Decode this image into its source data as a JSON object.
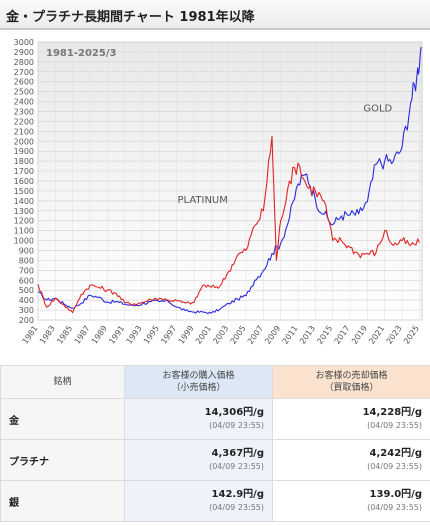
{
  "page": {
    "title": "金・プラチナ長期間チャート 1981年以降"
  },
  "chart_data": {
    "type": "line",
    "title": "金・プラチナ長期間チャート 1981年以降",
    "annotation_period": "1981-2025/3",
    "ylim": [
      200,
      3000
    ],
    "y_ticks": [
      200,
      300,
      400,
      500,
      600,
      700,
      800,
      900,
      1000,
      1100,
      1200,
      1300,
      1400,
      1500,
      1600,
      1700,
      1800,
      1900,
      2000,
      2100,
      2200,
      2300,
      2400,
      2500,
      2600,
      2700,
      2800,
      2900,
      3000
    ],
    "x_ticks": [
      "1981",
      "1983",
      "1985",
      "1987",
      "1989",
      "1991",
      "1993",
      "1995",
      "1997",
      "1999",
      "2001",
      "2003",
      "2005",
      "2007",
      "2009",
      "2011",
      "2013",
      "2015",
      "2017",
      "2019",
      "2021",
      "2023",
      "2025"
    ],
    "grid": true,
    "colors": {
      "gold": "#2b2bdd",
      "platinum": "#e02424"
    },
    "series": [
      {
        "name": "GOLD",
        "points": [
          [
            1981,
            480
          ],
          [
            1982,
            400
          ],
          [
            1983,
            420
          ],
          [
            1984,
            360
          ],
          [
            1985,
            320
          ],
          [
            1986,
            370
          ],
          [
            1987,
            450
          ],
          [
            1988,
            430
          ],
          [
            1989,
            380
          ],
          [
            1990,
            385
          ],
          [
            1991,
            360
          ],
          [
            1992,
            345
          ],
          [
            1993,
            360
          ],
          [
            1994,
            385
          ],
          [
            1995,
            385
          ],
          [
            1996,
            390
          ],
          [
            1997,
            330
          ],
          [
            1998,
            295
          ],
          [
            1999,
            280
          ],
          [
            2000,
            280
          ],
          [
            2001,
            270
          ],
          [
            2002,
            310
          ],
          [
            2003,
            365
          ],
          [
            2004,
            410
          ],
          [
            2005,
            445
          ],
          [
            2006,
            600
          ],
          [
            2007,
            700
          ],
          [
            2008,
            870
          ],
          [
            2009,
            975
          ],
          [
            2010,
            1225
          ],
          [
            2011,
            1570
          ],
          [
            2012,
            1670
          ],
          [
            2013,
            1410
          ],
          [
            2014,
            1265
          ],
          [
            2015,
            1160
          ],
          [
            2016,
            1250
          ],
          [
            2017,
            1260
          ],
          [
            2018,
            1270
          ],
          [
            2019,
            1390
          ],
          [
            2020,
            1770
          ],
          [
            2021,
            1800
          ],
          [
            2022,
            1800
          ],
          [
            2023,
            1940
          ],
          [
            2024,
            2390
          ],
          [
            2024.7,
            2650
          ],
          [
            2025.2,
            2950
          ]
        ]
      },
      {
        "name": "PLATINUM",
        "points": [
          [
            1981,
            560
          ],
          [
            1982,
            330
          ],
          [
            1983,
            420
          ],
          [
            1984,
            350
          ],
          [
            1985,
            275
          ],
          [
            1986,
            460
          ],
          [
            1987,
            550
          ],
          [
            1988,
            530
          ],
          [
            1989,
            500
          ],
          [
            1990,
            470
          ],
          [
            1991,
            375
          ],
          [
            1992,
            360
          ],
          [
            1993,
            375
          ],
          [
            1994,
            405
          ],
          [
            1995,
            420
          ],
          [
            1996,
            400
          ],
          [
            1997,
            395
          ],
          [
            1998,
            370
          ],
          [
            1999,
            375
          ],
          [
            2000,
            550
          ],
          [
            2001,
            530
          ],
          [
            2002,
            540
          ],
          [
            2003,
            690
          ],
          [
            2004,
            850
          ],
          [
            2005,
            900
          ],
          [
            2006,
            1150
          ],
          [
            2007,
            1300
          ],
          [
            2008,
            2050
          ],
          [
            2008.5,
            800
          ],
          [
            2009,
            1200
          ],
          [
            2010,
            1600
          ],
          [
            2011,
            1780
          ],
          [
            2012,
            1550
          ],
          [
            2013,
            1500
          ],
          [
            2014,
            1400
          ],
          [
            2015,
            1000
          ],
          [
            2016,
            1000
          ],
          [
            2017,
            930
          ],
          [
            2018,
            860
          ],
          [
            2019,
            870
          ],
          [
            2020,
            880
          ],
          [
            2021,
            1100
          ],
          [
            2022,
            950
          ],
          [
            2023,
            1000
          ],
          [
            2024,
            950
          ],
          [
            2025,
            980
          ]
        ]
      }
    ]
  },
  "table": {
    "headers": {
      "name": "銘柄",
      "buy_line1": "お客様の購入価格",
      "buy_line2": "（小売価格）",
      "sell_line1": "お客様の売却価格",
      "sell_line2": "（買取価格）"
    },
    "rows": [
      {
        "name": "金",
        "buy_price": "14,306円/g",
        "buy_time": "(04/09 23:55)",
        "sell_price": "14,228円/g",
        "sell_time": "(04/09 23:55)"
      },
      {
        "name": "プラチナ",
        "buy_price": "4,367円/g",
        "buy_time": "(04/09 23:55)",
        "sell_price": "4,242円/g",
        "sell_time": "(04/09 23:55)"
      },
      {
        "name": "銀",
        "buy_price": "142.9円/g",
        "buy_time": "(04/09 23:55)",
        "sell_price": "139.0円/g",
        "sell_time": "(04/09 23:55)"
      }
    ]
  }
}
